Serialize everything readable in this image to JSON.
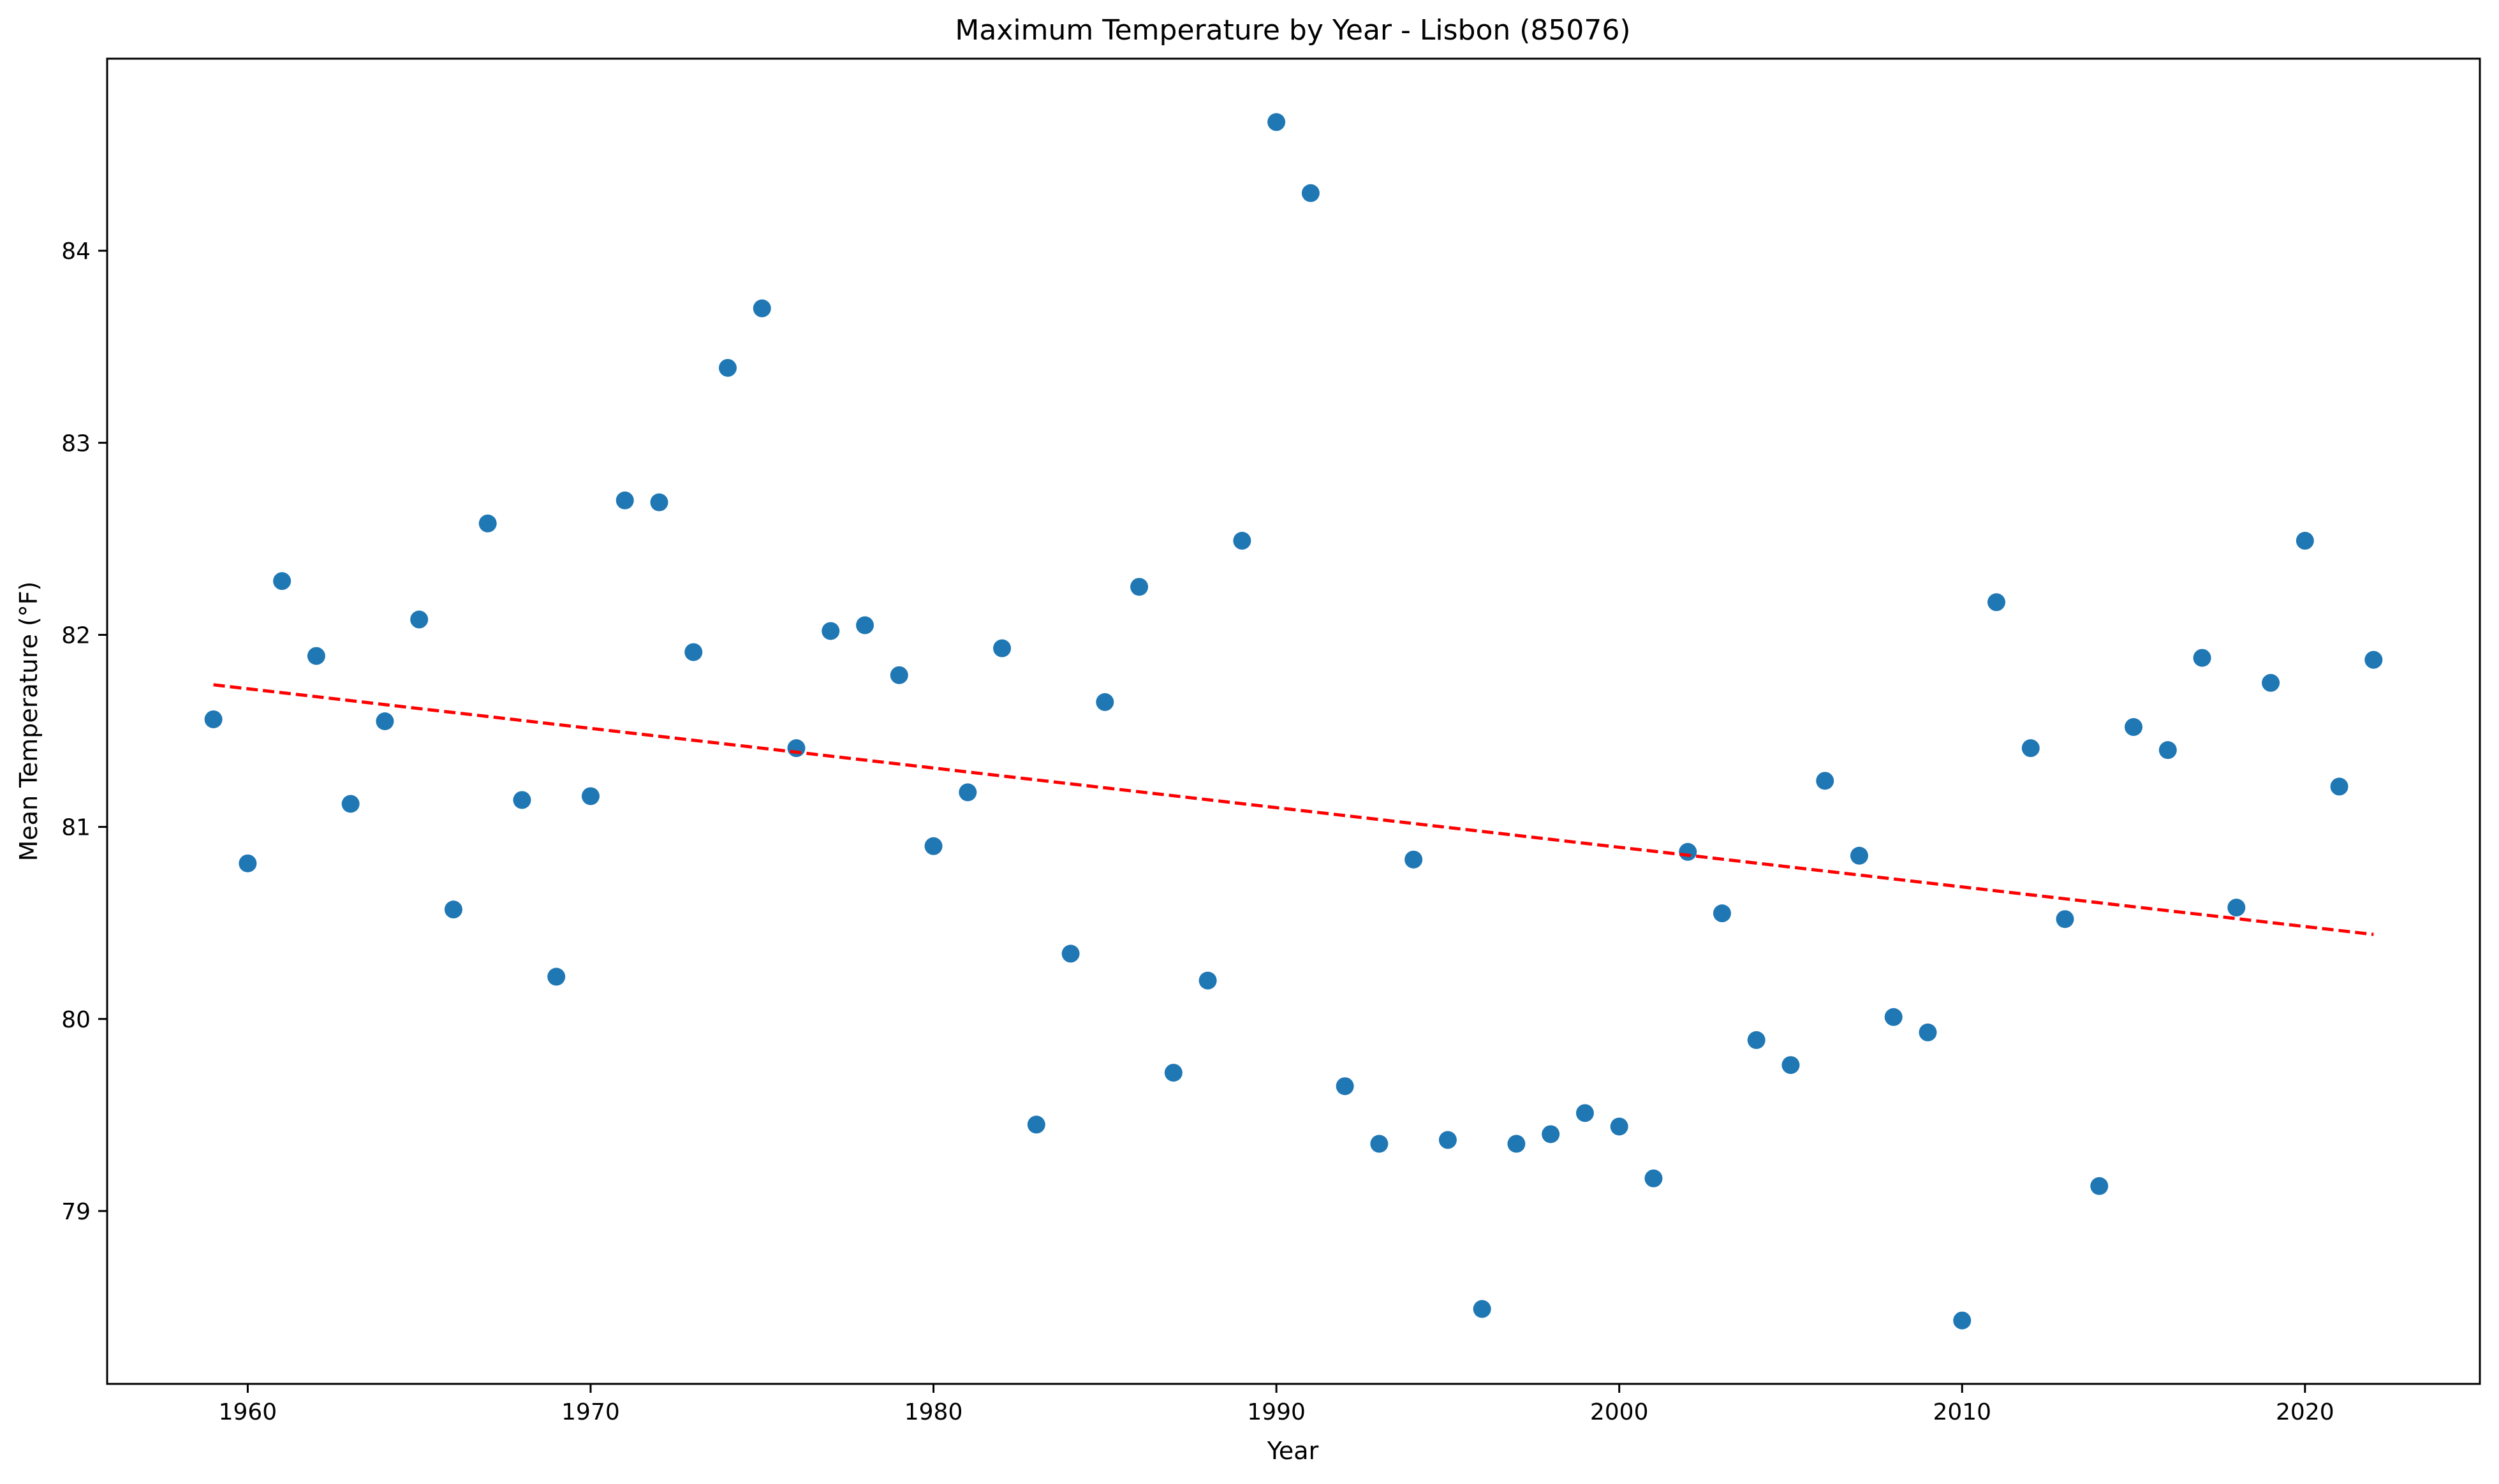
{
  "chart_data": {
    "type": "scatter",
    "title": "Maximum Temperature by Year - Lisbon (85076)",
    "xlabel": "Year",
    "ylabel": "Mean Temperature (°F)",
    "xlim": [
      1955.9,
      2025.1
    ],
    "ylim": [
      78.1,
      85.0
    ],
    "xticks": [
      1960,
      1970,
      1980,
      1990,
      2000,
      2010,
      2020
    ],
    "yticks": [
      79,
      80,
      81,
      82,
      83,
      84
    ],
    "grid": false,
    "legend": "none",
    "series": [
      {
        "marker_color": "#1f77b4",
        "x": [
          1959,
          1960,
          1961,
          1962,
          1963,
          1964,
          1965,
          1966,
          1967,
          1968,
          1969,
          1970,
          1971,
          1972,
          1973,
          1974,
          1975,
          1976,
          1977,
          1978,
          1979,
          1980,
          1981,
          1982,
          1983,
          1984,
          1985,
          1986,
          1987,
          1988,
          1989,
          1990,
          1991,
          1992,
          1993,
          1994,
          1995,
          1996,
          1997,
          1998,
          1999,
          2000,
          2001,
          2002,
          2003,
          2004,
          2005,
          2006,
          2007,
          2008,
          2009,
          2010,
          2011,
          2012,
          2013,
          2014,
          2015,
          2016,
          2017,
          2018,
          2019,
          2020,
          2021,
          2022
        ],
        "y": [
          81.56,
          80.81,
          82.28,
          81.89,
          81.12,
          81.55,
          82.08,
          80.57,
          82.58,
          81.14,
          80.22,
          81.16,
          82.7,
          82.69,
          81.91,
          83.39,
          83.7,
          81.41,
          82.02,
          82.05,
          81.79,
          80.9,
          81.18,
          81.93,
          79.45,
          80.34,
          81.65,
          82.25,
          79.72,
          80.2,
          82.49,
          84.67,
          84.3,
          79.65,
          79.35,
          80.83,
          79.37,
          78.49,
          79.35,
          79.4,
          79.51,
          79.44,
          79.17,
          80.87,
          80.55,
          79.89,
          79.76,
          81.24,
          80.85,
          80.01,
          79.93,
          78.43,
          82.17,
          81.41,
          80.52,
          79.13,
          81.52,
          81.4,
          81.88,
          80.58,
          81.75,
          82.49,
          81.21,
          81.87
        ]
      }
    ],
    "trendline": {
      "color": "#ff0000",
      "style": "dashed",
      "x": [
        1959,
        2022
      ],
      "y": [
        81.74,
        80.44
      ]
    }
  }
}
